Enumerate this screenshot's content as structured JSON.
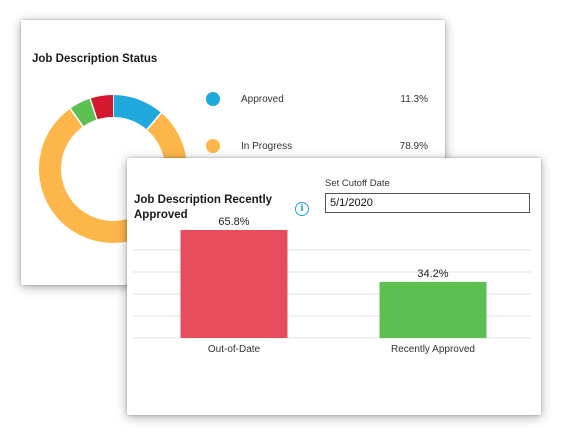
{
  "status_card": {
    "title": "Job Description Status",
    "legend": [
      {
        "label": "Approved",
        "percent": "11.3%",
        "color": "#1ea8dc"
      },
      {
        "label": "In Progress",
        "percent": "78.9%",
        "color": "#fdb64a"
      }
    ]
  },
  "donut": {
    "slices": [
      {
        "value": 11.3,
        "color": "#1ea8dc"
      },
      {
        "value": 78.9,
        "color": "#fdb64a"
      },
      {
        "value": 4.8,
        "color": "#5cbf52"
      },
      {
        "value": 5.0,
        "color": "#d21930"
      }
    ]
  },
  "recent_card": {
    "title": "Job Description Recently Approved",
    "info_icon": "i",
    "cutoff_label": "Set Cutoff Date",
    "cutoff_value": "5/1/2020"
  },
  "chart_data": {
    "type": "bar",
    "categories": [
      "Out-of-Date",
      "Recently Approved"
    ],
    "values": [
      65.8,
      34.2
    ],
    "value_labels": [
      "65.8%",
      "34.2%"
    ],
    "colors": [
      "#e64c5c",
      "#5cbf52"
    ],
    "ylim": [
      0,
      100
    ],
    "grid": true
  }
}
